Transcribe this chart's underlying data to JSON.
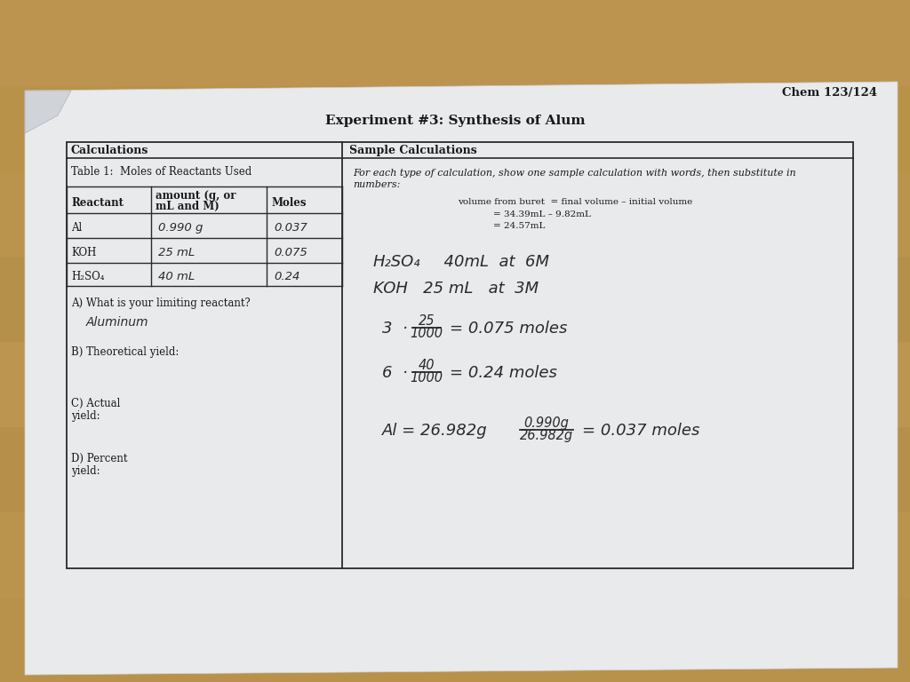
{
  "wood_color": "#b8924a",
  "paper_color": "#e8eaec",
  "paper_edge": "#cccccc",
  "border_color": "#2a2a2a",
  "text_color": "#1a1a1a",
  "hw_color": "#2a2a2a",
  "title_main": "Experiment #3: Synthesis of Alum",
  "course_code": "Chem 123/124",
  "section_left": "Calculations",
  "section_right": "Sample Calculations",
  "table_title": "Table 1:  Moles of Reactants Used",
  "col_headers": [
    "Reactant",
    "amount (g, or",
    "mL and M)",
    "Moles"
  ],
  "row1": [
    "Al",
    "0.990 g",
    "0.037"
  ],
  "row2": [
    "KOH",
    "25 mL",
    "0.075"
  ],
  "row3": [
    "H₂SO₄",
    "40 mL",
    "0.24"
  ],
  "q_a": "A) What is your limiting reactant?",
  "ans_a": "Aluminum",
  "q_b": "B) Theoretical yield:",
  "q_c1": "C) Actual",
  "q_c2": "yield:",
  "q_d1": "D) Percent",
  "q_d2": "yield:",
  "intro1": "For each type of calculation, show one sample calculation with words, then substitute in",
  "intro2": "numbers:",
  "veq1": "volume from buret  = final volume – initial volume",
  "veq2": "= 34.39mL – 9.82mL",
  "veq3": "= 24.57mL",
  "hw1a": "H₂SO₄",
  "hw1b": "  40mL  at  6M",
  "hw2": "KOH   25 mL   at  3M",
  "frac1_pre": "3  ·",
  "frac1_num": "25",
  "frac1_den": "1000",
  "frac1_post": "= 0.075 moles",
  "frac2_pre": "6  ·",
  "frac2_num": "40",
  "frac2_den": "1000",
  "frac2_post": "= 0.24 moles",
  "hw5a": "Al = 26.982g",
  "frac3_num": "0.990g",
  "frac3_den": "26.982g",
  "frac3_post": "= 0.037 moles"
}
